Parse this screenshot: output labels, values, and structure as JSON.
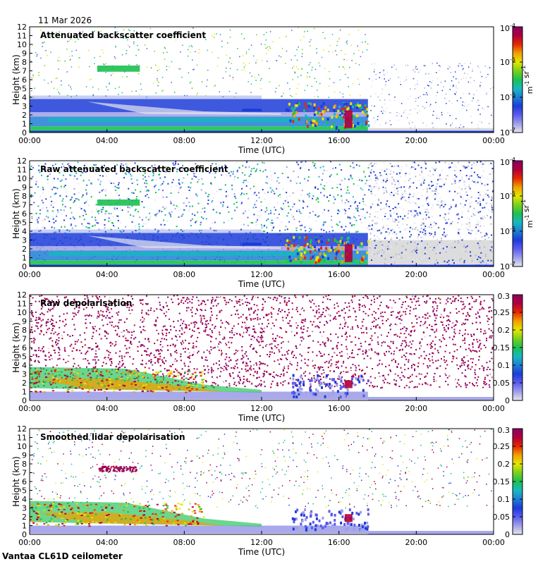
{
  "date_label": "11 Mar 2026",
  "footer_label": "Vantaa CL61D ceilometer",
  "chart_data": [
    {
      "type": "heatmap",
      "title": "Attenuated backscatter coefficient",
      "xlabel": "Time (UTC)",
      "ylabel": "Height (km)",
      "xlim": [
        0,
        24
      ],
      "ylim": [
        0,
        12
      ],
      "x_ticks": [
        "00:00",
        "04:00",
        "08:00",
        "12:00",
        "16:00",
        "20:00",
        "00:00"
      ],
      "y_ticks": [
        "0",
        "1",
        "2",
        "3",
        "4",
        "5",
        "6",
        "7",
        "8",
        "9",
        "10",
        "11",
        "12"
      ],
      "colorbar": {
        "scale": "log",
        "range": [
          1e-07,
          0.0001
        ],
        "unit": "m-1 sr-1",
        "ticks": [
          {
            "base": "10",
            "exp": "-4"
          },
          {
            "base": "10",
            "exp": "-5"
          },
          {
            "base": "10",
            "exp": "-6"
          },
          {
            "base": "10",
            "exp": "-7"
          }
        ]
      }
    },
    {
      "type": "heatmap",
      "title": "Raw attenuated backscatter coefficient",
      "xlabel": "Time (UTC)",
      "ylabel": "Height (km)",
      "xlim": [
        0,
        24
      ],
      "ylim": [
        0,
        12
      ],
      "x_ticks": [
        "00:00",
        "04:00",
        "08:00",
        "12:00",
        "16:00",
        "20:00",
        "00:00"
      ],
      "y_ticks": [
        "0",
        "1",
        "2",
        "3",
        "4",
        "5",
        "6",
        "7",
        "8",
        "9",
        "10",
        "11",
        "12"
      ],
      "colorbar": {
        "scale": "log",
        "range": [
          1e-07,
          0.0001
        ],
        "unit": "m-1 sr-1",
        "ticks": [
          {
            "base": "10",
            "exp": "-4"
          },
          {
            "base": "10",
            "exp": "-5"
          },
          {
            "base": "10",
            "exp": "-6"
          },
          {
            "base": "10",
            "exp": "-7"
          }
        ]
      }
    },
    {
      "type": "heatmap",
      "title": "Raw depolarisation",
      "xlabel": "Time (UTC)",
      "ylabel": "Height (km)",
      "xlim": [
        0,
        24
      ],
      "ylim": [
        0,
        12
      ],
      "x_ticks": [
        "00:00",
        "04:00",
        "08:00",
        "12:00",
        "16:00",
        "20:00",
        "00:00"
      ],
      "y_ticks": [
        "0",
        "1",
        "2",
        "3",
        "4",
        "5",
        "6",
        "7",
        "8",
        "9",
        "10",
        "11",
        "12"
      ],
      "colorbar": {
        "scale": "linear",
        "range": [
          0,
          0.3
        ],
        "ticks": [
          "0.3",
          "0.25",
          "0.2",
          "0.15",
          "0.1",
          "0.05",
          "0"
        ]
      }
    },
    {
      "type": "heatmap",
      "title": "Smoothed lidar depolarisation",
      "xlabel": "Time (UTC)",
      "ylabel": "Height (km)",
      "xlim": [
        0,
        24
      ],
      "ylim": [
        0,
        12
      ],
      "x_ticks": [
        "00:00",
        "04:00",
        "08:00",
        "12:00",
        "16:00",
        "20:00",
        "00:00"
      ],
      "y_ticks": [
        "0",
        "1",
        "2",
        "3",
        "4",
        "5",
        "6",
        "7",
        "8",
        "9",
        "10",
        "11",
        "12"
      ],
      "colorbar": {
        "scale": "linear",
        "range": [
          0,
          0.3
        ],
        "ticks": [
          "0.3",
          "0.25",
          "0.2",
          "0.15",
          "0.1",
          "0.05",
          "0"
        ]
      }
    }
  ]
}
